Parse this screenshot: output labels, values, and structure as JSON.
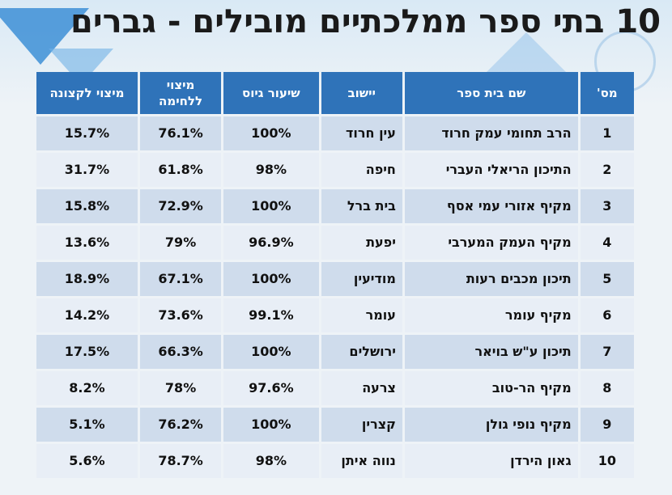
{
  "title": "10 בתי ספר ממלכתיים מובילים - גברים",
  "headers": {
    "num": "מס'",
    "school": "שם בית ספר",
    "city": "יישוב",
    "rate": "שיעור גיוס",
    "combat": "מיצוי ללחימה",
    "officer": "מיצוי לקצונה"
  },
  "rows": [
    {
      "num": "1",
      "school": "הרב תחומי עמק חרוד",
      "city": "עין חרוד",
      "rate": "100%",
      "combat": "76.1%",
      "officer": "15.7%"
    },
    {
      "num": "2",
      "school": "התיכון הריאלי העברי",
      "city": "חיפה",
      "rate": "98%",
      "combat": "61.8%",
      "officer": "31.7%"
    },
    {
      "num": "3",
      "school": "מקיף אזורי עמי אסף",
      "city": "בית ברל",
      "rate": "100%",
      "combat": "72.9%",
      "officer": "15.8%"
    },
    {
      "num": "4",
      "school": "מקיף העמק המערבי",
      "city": "יפעת",
      "rate": "96.9%",
      "combat": "79%",
      "officer": "13.6%"
    },
    {
      "num": "5",
      "school": "תיכון מכבים רעות",
      "city": "מודיעין",
      "rate": "100%",
      "combat": "67.1%",
      "officer": "18.9%"
    },
    {
      "num": "6",
      "school": "מקיף עומר",
      "city": "עומר",
      "rate": "99.1%",
      "combat": "73.6%",
      "officer": "14.2%"
    },
    {
      "num": "7",
      "school": "תיכון ע\"ש בויאר",
      "city": "ירושלים",
      "rate": "100%",
      "combat": "66.3%",
      "officer": "17.5%"
    },
    {
      "num": "8",
      "school": "מקיף הר-טוב",
      "city": "צרעה",
      "rate": "97.6%",
      "combat": "78%",
      "officer": "8.2%"
    },
    {
      "num": "9",
      "school": "מקיף נופי גולן",
      "city": "קצרין",
      "rate": "100%",
      "combat": "76.2%",
      "officer": "5.1%"
    },
    {
      "num": "10",
      "school": "גאון הירדן",
      "city": "נווה איתן",
      "rate": "98%",
      "combat": "78.7%",
      "officer": "5.6%"
    }
  ]
}
